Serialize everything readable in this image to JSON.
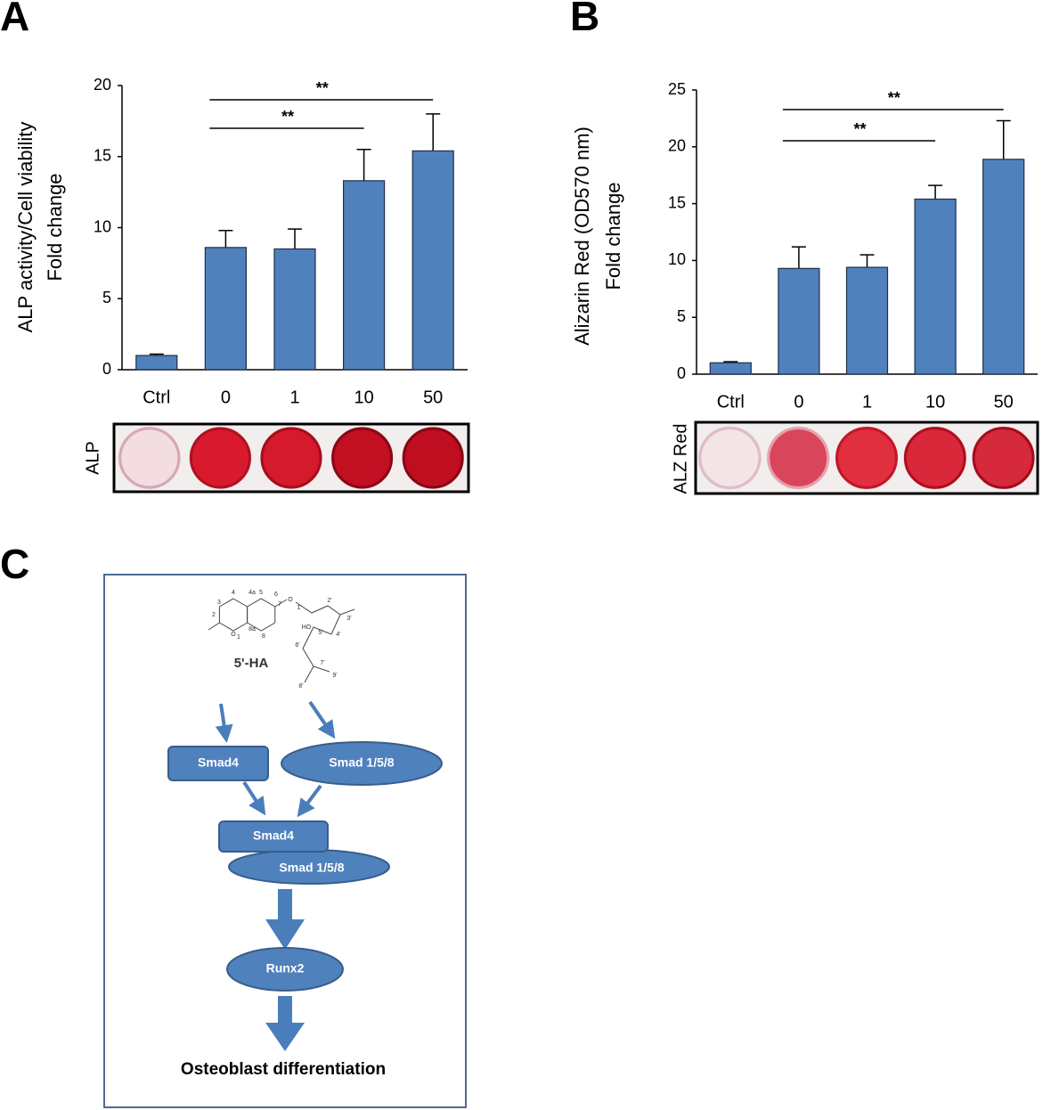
{
  "chart_data": [
    {
      "type": "bar",
      "panel": "A",
      "ylabel": [
        "ALP activity/Cell viability",
        "Fold change"
      ],
      "categories": [
        "Ctrl",
        "0",
        "1",
        "10",
        "50"
      ],
      "values": [
        1.0,
        8.6,
        8.5,
        13.3,
        15.4
      ],
      "errors": [
        0.1,
        1.2,
        1.4,
        2.2,
        2.6
      ],
      "color": "#4f81bd",
      "ylim": [
        0,
        20
      ],
      "yticks": [
        0,
        5,
        10,
        15,
        20
      ],
      "annotations": [
        "**",
        "**"
      ],
      "strip_label": "ALP"
    },
    {
      "type": "bar",
      "panel": "B",
      "ylabel": [
        "Alizarin Red (OD570 nm)",
        "Fold change"
      ],
      "categories": [
        "Ctrl",
        "0",
        "1",
        "10",
        "50"
      ],
      "values": [
        1.0,
        9.3,
        9.4,
        15.4,
        18.9
      ],
      "errors": [
        0.1,
        1.9,
        1.1,
        1.2,
        3.4
      ],
      "color": "#4f81bd",
      "ylim": [
        0,
        25
      ],
      "yticks": [
        0,
        5,
        10,
        15,
        20,
        25
      ],
      "annotations": [
        "**",
        "**"
      ],
      "strip_label": "ALZ Red"
    }
  ],
  "diagram": {
    "panel": "C",
    "compound": "5'-HA",
    "atom_labels": [
      "4",
      "4a",
      "5",
      "6",
      "7",
      "3",
      "2",
      "O",
      "8a",
      "1",
      "8",
      "O",
      "1'",
      "2'",
      "3'",
      "HO",
      "5'",
      "4'",
      "6'",
      "7'",
      "8'",
      "9'"
    ],
    "nodes": [
      "Smad4",
      "Smad 1/5/8",
      "Smad4",
      "Smad 1/5/8",
      "Runx2"
    ],
    "outcome": "Osteoblast differentiation"
  }
}
